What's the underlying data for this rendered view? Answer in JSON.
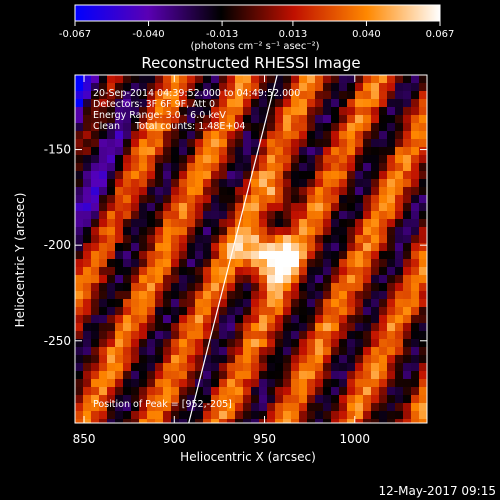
{
  "colorbar": {
    "ticks": [
      "-0.067",
      "-0.040",
      "-0.013",
      "0.013",
      "0.040",
      "0.067"
    ],
    "tick_values": [
      -0.067,
      -0.04,
      -0.013,
      0.013,
      0.04,
      0.067
    ],
    "units_label": "(photons cm⁻² s⁻¹ asec⁻²)",
    "range": [
      -0.067,
      0.067
    ],
    "colormap": [
      "#0000ff",
      "#5a00b4",
      "#000000",
      "#c01000",
      "#ff8800",
      "#ffffff"
    ]
  },
  "footer": {
    "timestamp": "12-May-2017 09:15"
  },
  "chart_data": {
    "type": "heatmap",
    "title": "Reconstructed RHESSI Image",
    "xlabel": "Heliocentric X (arcsec)",
    "ylabel": "Heliocentric Y (arcsec)",
    "x_ticks": [
      "850",
      "900",
      "950",
      "1000"
    ],
    "x_tick_values": [
      850,
      900,
      950,
      1000
    ],
    "y_ticks": [
      "-150",
      "-200",
      "-250"
    ],
    "y_tick_values": [
      -150,
      -200,
      -250
    ],
    "xlim": [
      845,
      1040
    ],
    "ylim": [
      -293,
      -111
    ],
    "info_lines": [
      "20-Sep-2014 04:39:52.000 to 04:49:52.000",
      "Detectors: 3F 6F 9F, Att 0",
      "Energy Range: 3.0 - 6.0 keV",
      "Clean     Total counts: 1.48E+04"
    ],
    "peak_label": "Position of Peak = [952,-205]",
    "peak": [
      952,
      -205
    ],
    "limb_line": {
      "x": [
        908,
        957
      ],
      "y": [
        -293,
        -111
      ]
    }
  }
}
